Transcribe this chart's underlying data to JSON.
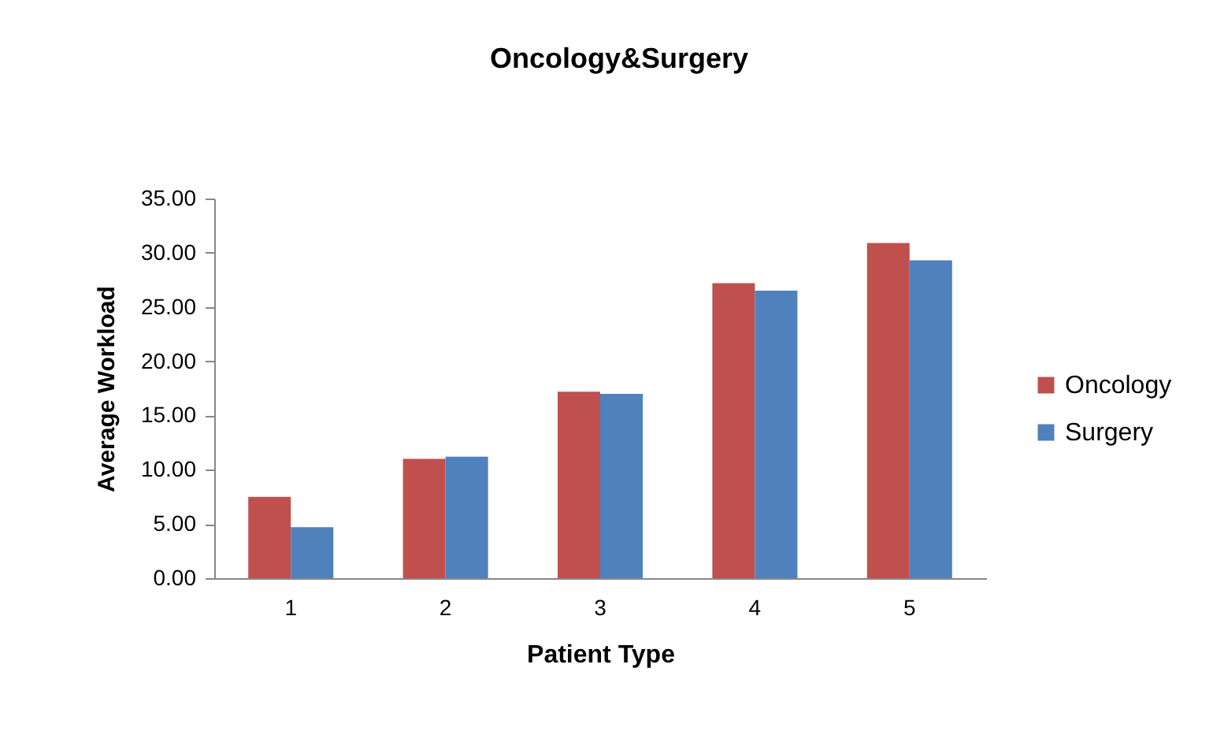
{
  "chart_data": {
    "type": "bar",
    "title": "Oncology&Surgery",
    "xlabel": "Patient Type",
    "ylabel": "Average Workload",
    "categories": [
      "1",
      "2",
      "3",
      "4",
      "5"
    ],
    "series": [
      {
        "name": "Oncology",
        "color": "#c0504d",
        "values": [
          7.5,
          11.0,
          17.2,
          27.2,
          30.9
        ]
      },
      {
        "name": "Surgery",
        "color": "#4f81bd",
        "values": [
          4.7,
          11.2,
          17.0,
          26.5,
          29.3
        ]
      }
    ],
    "ylim": [
      0,
      35
    ],
    "yticks": [
      {
        "value": 0,
        "label": "0.00"
      },
      {
        "value": 5,
        "label": "5.00"
      },
      {
        "value": 10,
        "label": "10.00"
      },
      {
        "value": 15,
        "label": "15.00"
      },
      {
        "value": 20,
        "label": "20.00"
      },
      {
        "value": 25,
        "label": "25.00"
      },
      {
        "value": 30,
        "label": "30.00"
      },
      {
        "value": 35,
        "label": "35.00"
      }
    ],
    "grid": false,
    "legend": "right"
  }
}
